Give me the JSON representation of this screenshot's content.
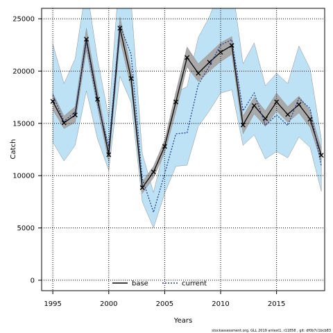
{
  "chart_data": {
    "type": "line",
    "title": "",
    "xlabel": "Years",
    "ylabel": "Catch",
    "xlim": [
      1994,
      2019.3
    ],
    "ylim": [
      -1000,
      26000
    ],
    "x_ticks": [
      1995,
      2000,
      2005,
      2010,
      2015
    ],
    "y_ticks": [
      0,
      5000,
      10000,
      15000,
      20000,
      25000
    ],
    "grid": true,
    "legend_position": "bottom-center",
    "x": [
      1995,
      1996,
      1997,
      1998,
      1999,
      2000,
      2001,
      2002,
      2003,
      2004,
      2005,
      2006,
      2007,
      2008,
      2009,
      2010,
      2011,
      2012,
      2013,
      2014,
      2015,
      2016,
      2017,
      2018,
      2019
    ],
    "observed": [
      17100,
      15050,
      15800,
      23050,
      17300,
      12000,
      24100,
      19300,
      8850,
      10350,
      12800,
      17050,
      21300,
      19800,
      20850,
      21800,
      22450,
      14850,
      16700,
      15450,
      17050,
      15850,
      16800,
      15400,
      11950
    ],
    "series": [
      {
        "name": "base",
        "color": "#000000",
        "dash": "solid",
        "values": [
          17100,
          15050,
          15800,
          23050,
          17300,
          12000,
          24100,
          19300,
          8850,
          10350,
          12800,
          17050,
          21300,
          19800,
          20850,
          21800,
          22450,
          14850,
          16700,
          15450,
          17050,
          15850,
          16800,
          15400,
          11950
        ],
        "band_lower": [
          16300,
          14500,
          15100,
          22000,
          16500,
          11300,
          23000,
          18400,
          8300,
          9800,
          12200,
          16100,
          20400,
          19000,
          20000,
          20900,
          21600,
          14000,
          15900,
          14700,
          16200,
          15100,
          16000,
          14600,
          11300
        ],
        "band_upper": [
          17900,
          15700,
          16600,
          24100,
          18100,
          12700,
          25200,
          20200,
          9400,
          10900,
          13400,
          18000,
          22300,
          20700,
          21700,
          22700,
          23300,
          15700,
          17500,
          16200,
          17900,
          16600,
          17600,
          16200,
          12600
        ],
        "band_color": "#a9a9a9"
      },
      {
        "name": "current",
        "color": "#1f3f8f",
        "dash": "dotted",
        "values": [
          17700,
          15200,
          16100,
          22800,
          16900,
          12800,
          24400,
          21600,
          9700,
          6500,
          10200,
          14000,
          14100,
          18700,
          20500,
          22500,
          23000,
          16200,
          17900,
          14800,
          15800,
          14800,
          17400,
          16400,
          10900
        ],
        "band_lower": [
          13200,
          11400,
          12900,
          18100,
          13500,
          10500,
          19500,
          17000,
          7500,
          5000,
          8300,
          10900,
          11000,
          14700,
          16200,
          17900,
          18200,
          12900,
          13900,
          11600,
          12300,
          11700,
          13700,
          12700,
          8500
        ],
        "band_upper": [
          22600,
          18800,
          21200,
          28200,
          21100,
          15600,
          30000,
          26700,
          12100,
          8400,
          12800,
          18000,
          18500,
          23200,
          25200,
          28000,
          28500,
          20700,
          22700,
          18600,
          19800,
          18800,
          22400,
          20200,
          13500
        ],
        "band_color": "#bee2f5"
      }
    ]
  },
  "footer": "stockassessment.org, GLL 2019 antest1, r11858 , git: df0b7c1bcb83"
}
